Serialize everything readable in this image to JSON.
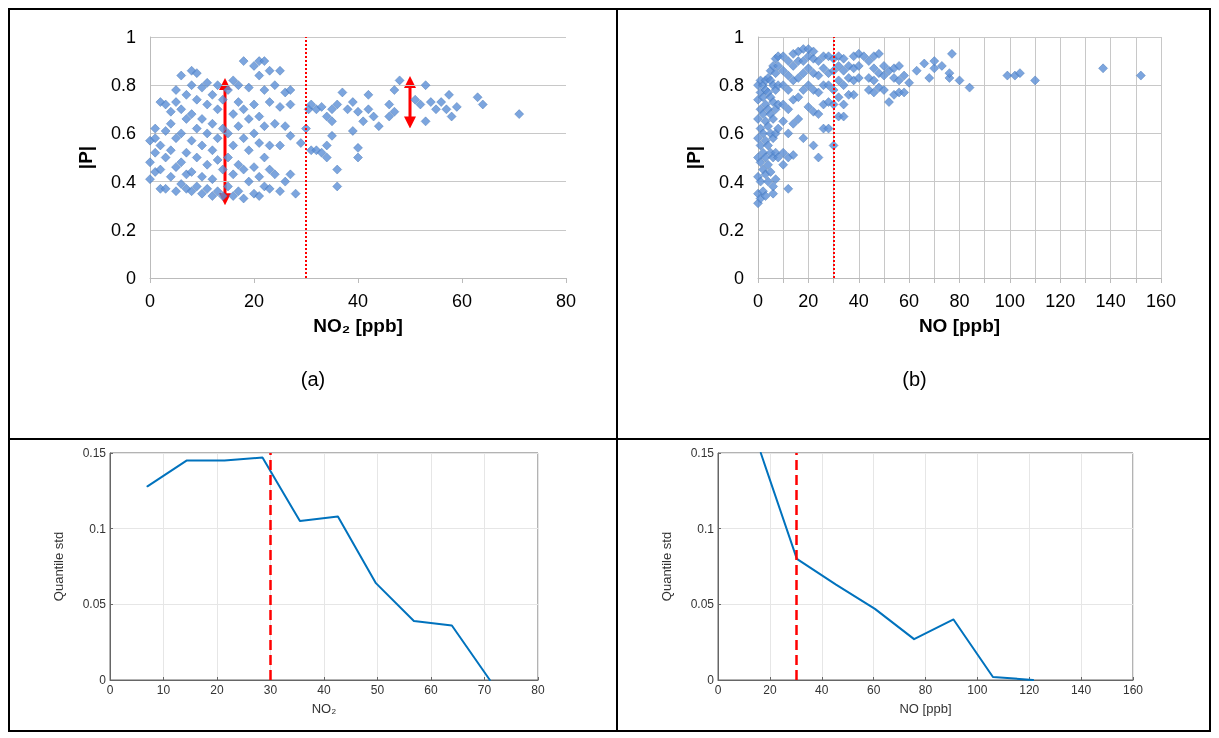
{
  "chart_data": [
    {
      "type": "scatter",
      "xlabel": "NO₂ [ppb]",
      "ylabel": "|P|",
      "xlim": [
        0,
        80
      ],
      "ylim": [
        0,
        1
      ],
      "xticks": [
        0,
        20,
        40,
        60,
        80
      ],
      "yticks": [
        0,
        0.2,
        0.4,
        0.6,
        0.8,
        1
      ],
      "grid": "y",
      "marker": "diamond",
      "annotations": [
        "(a)"
      ],
      "ref_lines": [
        {
          "axis": "x",
          "value": 30,
          "color": "#ff0000",
          "line_style": "dotted"
        }
      ],
      "series": [
        {
          "color": "#5b8fd6",
          "x": [
            0,
            0,
            0,
            1,
            1,
            1,
            1,
            2,
            2,
            2,
            2,
            3,
            3,
            3,
            3,
            4,
            4,
            4,
            4,
            5,
            5,
            5,
            5,
            5,
            6,
            6,
            6,
            6,
            6,
            7,
            7,
            7,
            7,
            7,
            8,
            8,
            8,
            8,
            8,
            8,
            9,
            9,
            9,
            9,
            9,
            10,
            10,
            10,
            10,
            10,
            11,
            11,
            11,
            11,
            11,
            12,
            12,
            12,
            12,
            12,
            13,
            13,
            13,
            13,
            13,
            14,
            14,
            14,
            14,
            15,
            15,
            15,
            15,
            16,
            16,
            16,
            16,
            16,
            17,
            17,
            17,
            17,
            17,
            18,
            18,
            18,
            18,
            18,
            19,
            19,
            19,
            19,
            20,
            20,
            20,
            20,
            20,
            21,
            21,
            21,
            21,
            21,
            21,
            22,
            22,
            22,
            22,
            22,
            23,
            23,
            23,
            23,
            23,
            24,
            24,
            24,
            25,
            25,
            25,
            25,
            26,
            26,
            26,
            27,
            27,
            27,
            27,
            28,
            29,
            30,
            30.5,
            31,
            31,
            32,
            32,
            33,
            33,
            34,
            34,
            34,
            35,
            35,
            35,
            36,
            36,
            36,
            37,
            38,
            39,
            39,
            40,
            40,
            40,
            41,
            42,
            42,
            43,
            44,
            46,
            46,
            47,
            47,
            48,
            51,
            52,
            53,
            53,
            54,
            55,
            56,
            57,
            57.5,
            58,
            59,
            63,
            64,
            71
          ],
          "values": [
            0.41,
            0.48,
            0.57,
            0.44,
            0.52,
            0.58,
            0.62,
            0.37,
            0.45,
            0.55,
            0.73,
            0.37,
            0.5,
            0.61,
            0.72,
            0.42,
            0.53,
            0.64,
            0.69,
            0.36,
            0.46,
            0.58,
            0.73,
            0.78,
            0.39,
            0.48,
            0.6,
            0.7,
            0.84,
            0.37,
            0.43,
            0.52,
            0.66,
            0.76,
            0.36,
            0.44,
            0.57,
            0.68,
            0.8,
            0.86,
            0.38,
            0.5,
            0.62,
            0.74,
            0.85,
            0.35,
            0.42,
            0.55,
            0.66,
            0.79,
            0.37,
            0.47,
            0.6,
            0.72,
            0.81,
            0.34,
            0.41,
            0.53,
            0.64,
            0.76,
            0.36,
            0.49,
            0.58,
            0.7,
            0.8,
            0.34,
            0.45,
            0.62,
            0.74,
            0.38,
            0.5,
            0.6,
            0.78,
            0.34,
            0.43,
            0.55,
            0.68,
            0.82,
            0.36,
            0.47,
            0.63,
            0.73,
            0.8,
            0.33,
            0.45,
            0.58,
            0.7,
            0.9,
            0.4,
            0.53,
            0.66,
            0.79,
            0.35,
            0.46,
            0.6,
            0.72,
            0.88,
            0.34,
            0.42,
            0.56,
            0.67,
            0.84,
            0.9,
            0.38,
            0.5,
            0.63,
            0.78,
            0.9,
            0.37,
            0.45,
            0.55,
            0.73,
            0.86,
            0.43,
            0.64,
            0.8,
            0.36,
            0.55,
            0.71,
            0.86,
            0.4,
            0.63,
            0.77,
            0.43,
            0.59,
            0.72,
            0.78,
            0.35,
            0.56,
            0.62,
            0.7,
            0.72,
            0.53,
            0.7,
            0.53,
            0.71,
            0.52,
            0.67,
            0.5,
            0.55,
            0.65,
            0.59,
            0.7,
            0.45,
            0.38,
            0.72,
            0.77,
            0.7,
            0.73,
            0.61,
            0.69,
            0.5,
            0.54,
            0.65,
            0.76,
            0.7,
            0.67,
            0.63,
            0.67,
            0.72,
            0.78,
            0.69,
            0.82,
            0.74,
            0.72,
            0.8,
            0.65,
            0.73,
            0.7,
            0.73,
            0.7,
            0.76,
            0.67,
            0.71,
            0.75,
            0.72,
            0.68
          ]
        }
      ]
    },
    {
      "type": "scatter",
      "xlabel": "NO [ppb]",
      "ylabel": "|P|",
      "xlim": [
        0,
        160
      ],
      "ylim": [
        0,
        1
      ],
      "xticks": [
        0,
        {
          "value": 10,
          "label": null
        },
        20,
        {
          "value": 30,
          "label": null
        },
        40,
        {
          "value": 50,
          "label": null
        },
        60,
        {
          "value": 70,
          "label": null
        },
        80,
        {
          "value": 90,
          "label": null
        },
        100,
        {
          "value": 110,
          "label": null
        },
        120,
        {
          "value": 130,
          "label": null
        },
        140,
        {
          "value": 150,
          "label": null
        },
        160
      ],
      "yticks": [
        0,
        0.2,
        0.4,
        0.6,
        0.8,
        1
      ],
      "grid": true,
      "marker": "diamond",
      "annotations": [
        "(b)"
      ],
      "ref_lines": [
        {
          "axis": "x",
          "value": 30,
          "color": "#ff0000",
          "line_style": "dotted"
        }
      ],
      "series": [
        {
          "color": "#5b8fd6",
          "x": [
            0,
            0,
            0,
            0,
            0,
            0,
            0,
            0,
            1,
            1,
            1,
            1,
            1,
            1,
            1,
            1,
            2,
            2,
            2,
            2,
            2,
            2,
            2,
            3,
            3,
            3,
            3,
            3,
            3,
            3,
            3,
            4,
            4,
            4,
            4,
            4,
            4,
            4,
            5,
            5,
            5,
            5,
            5,
            5,
            5,
            6,
            6,
            6,
            6,
            6,
            6,
            6,
            6,
            7,
            7,
            7,
            7,
            7,
            7,
            7,
            8,
            8,
            8,
            8,
            8,
            8,
            10,
            10,
            10,
            10,
            10,
            10,
            10,
            12,
            12,
            12,
            12,
            12,
            12,
            12,
            14,
            14,
            14,
            14,
            14,
            14,
            16,
            16,
            16,
            16,
            16,
            18,
            18,
            18,
            18,
            18,
            20,
            20,
            20,
            20,
            20,
            22,
            22,
            22,
            22,
            22,
            22,
            24,
            24,
            24,
            24,
            24,
            26,
            26,
            26,
            26,
            26,
            28,
            28,
            28,
            28,
            28,
            30,
            30,
            30,
            30,
            30,
            32,
            32,
            32,
            32,
            32,
            34,
            34,
            34,
            34,
            34,
            36,
            36,
            36,
            38,
            38,
            38,
            38,
            40,
            40,
            40,
            42,
            44,
            44,
            44,
            46,
            46,
            46,
            46,
            48,
            48,
            48,
            50,
            50,
            50,
            52,
            52,
            54,
            54,
            54,
            56,
            56,
            56,
            58,
            58,
            60,
            63,
            66,
            68,
            70,
            70,
            73,
            76,
            76,
            77,
            80,
            84,
            99,
            102,
            104,
            110,
            137,
            152
          ],
          "values": [
            0.31,
            0.35,
            0.42,
            0.5,
            0.58,
            0.66,
            0.74,
            0.8,
            0.33,
            0.4,
            0.48,
            0.55,
            0.62,
            0.7,
            0.77,
            0.82,
            0.36,
            0.45,
            0.52,
            0.6,
            0.68,
            0.75,
            0.8,
            0.34,
            0.43,
            0.5,
            0.57,
            0.65,
            0.72,
            0.78,
            0.82,
            0.4,
            0.47,
            0.55,
            0.63,
            0.7,
            0.77,
            0.83,
            0.44,
            0.52,
            0.6,
            0.68,
            0.75,
            0.82,
            0.86,
            0.35,
            0.38,
            0.5,
            0.58,
            0.66,
            0.73,
            0.8,
            0.88,
            0.41,
            0.52,
            0.6,
            0.7,
            0.78,
            0.85,
            0.91,
            0.5,
            0.62,
            0.72,
            0.8,
            0.88,
            0.92,
            0.47,
            0.52,
            0.65,
            0.72,
            0.8,
            0.86,
            0.92,
            0.37,
            0.5,
            0.6,
            0.7,
            0.78,
            0.84,
            0.9,
            0.51,
            0.64,
            0.74,
            0.82,
            0.88,
            0.93,
            0.66,
            0.75,
            0.83,
            0.9,
            0.94,
            0.58,
            0.78,
            0.85,
            0.9,
            0.95,
            0.71,
            0.8,
            0.87,
            0.92,
            0.95,
            0.55,
            0.69,
            0.78,
            0.85,
            0.91,
            0.94,
            0.5,
            0.68,
            0.77,
            0.84,
            0.9,
            0.62,
            0.72,
            0.8,
            0.87,
            0.92,
            0.62,
            0.73,
            0.8,
            0.85,
            0.92,
            0.55,
            0.72,
            0.78,
            0.86,
            0.91,
            0.67,
            0.75,
            0.82,
            0.88,
            0.92,
            0.67,
            0.72,
            0.8,
            0.86,
            0.91,
            0.76,
            0.83,
            0.88,
            0.76,
            0.82,
            0.87,
            0.92,
            0.83,
            0.88,
            0.93,
            0.92,
            0.78,
            0.83,
            0.9,
            0.77,
            0.82,
            0.87,
            0.92,
            0.79,
            0.85,
            0.93,
            0.78,
            0.84,
            0.88,
            0.73,
            0.86,
            0.76,
            0.83,
            0.87,
            0.77,
            0.82,
            0.88,
            0.77,
            0.84,
            0.81,
            0.86,
            0.89,
            0.83,
            0.87,
            0.9,
            0.88,
            0.83,
            0.85,
            0.93,
            0.82,
            0.79,
            0.84,
            0.84,
            0.85,
            0.82,
            0.87,
            0.84
          ]
        }
      ]
    },
    {
      "type": "line",
      "xlabel": "NO₂",
      "ylabel": "Quantile std",
      "xlim": [
        0,
        80
      ],
      "ylim": [
        0,
        0.15
      ],
      "xticks": [
        0,
        10,
        20,
        30,
        40,
        50,
        60,
        70,
        80
      ],
      "yticks": [
        0,
        0.05,
        0.1,
        0.15
      ],
      "grid": true,
      "marker": "none",
      "ref_lines": [
        {
          "axis": "x",
          "value": 30,
          "color": "#ff0000",
          "line_style": "dashed"
        }
      ],
      "series": [
        {
          "color": "#0072bd",
          "x": [
            7,
            14.3,
            21.4,
            28.5,
            35.5,
            42.6,
            49.7,
            56.8,
            63.9,
            71
          ],
          "values": [
            0.128,
            0.145,
            0.145,
            0.147,
            0.105,
            0.108,
            0.064,
            0.039,
            0.036,
            0
          ]
        }
      ]
    },
    {
      "type": "line",
      "xlabel": "NO [ppb]",
      "ylabel": "Quantile std",
      "xlim": [
        0,
        160
      ],
      "ylim": [
        0,
        0.15
      ],
      "xticks": [
        0,
        20,
        40,
        60,
        80,
        100,
        120,
        140,
        160
      ],
      "yticks": [
        0,
        0.05,
        0.1,
        0.15
      ],
      "grid": true,
      "marker": "none",
      "ref_lines": [
        {
          "axis": "x",
          "value": 30,
          "color": "#ff0000",
          "line_style": "dashed"
        }
      ],
      "series": [
        {
          "color": "#0072bd",
          "x": [
            16.5,
            30.4,
            45.5,
            60.5,
            75.6,
            90.8,
            106,
            121.5
          ],
          "values": [
            0.15,
            0.08,
            0.063,
            0.047,
            0.027,
            0.04,
            0.002,
            0
          ]
        }
      ]
    }
  ]
}
